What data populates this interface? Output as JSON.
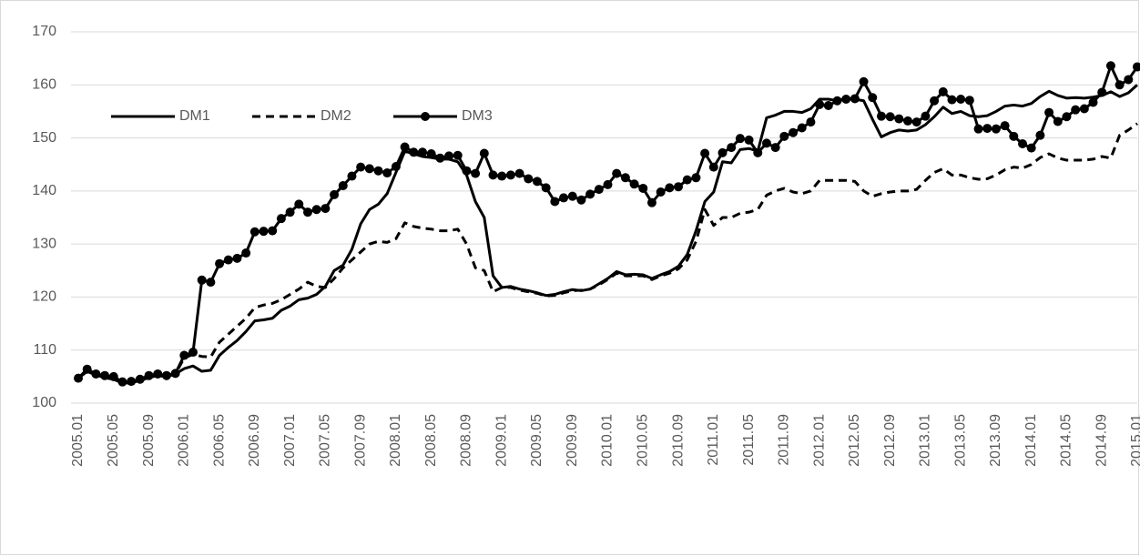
{
  "chart_data": {
    "type": "line",
    "categories": [
      "2005.01",
      null,
      null,
      null,
      "2005.05",
      null,
      null,
      null,
      "2005.09",
      null,
      null,
      null,
      "2006.01",
      null,
      null,
      null,
      "2006.05",
      null,
      null,
      null,
      "2006.09",
      null,
      null,
      null,
      "2007.01",
      null,
      null,
      null,
      "2007.05",
      null,
      null,
      null,
      "2007.09",
      null,
      null,
      null,
      "2008.01",
      null,
      null,
      null,
      "2008.05",
      null,
      null,
      null,
      "2008.09",
      null,
      null,
      null,
      "2009.01",
      null,
      null,
      null,
      "2009.05",
      null,
      null,
      null,
      "2009.09",
      null,
      null,
      null,
      "2010.01",
      null,
      null,
      null,
      "2010.05",
      null,
      null,
      null,
      "2010.09",
      null,
      null,
      null,
      "2011.01",
      null,
      null,
      null,
      "2011.05",
      null,
      null,
      null,
      "2011.09",
      null,
      null,
      null,
      "2012.01",
      null,
      null,
      null,
      "2012.05",
      null,
      null,
      null,
      "2012.09",
      null,
      null,
      null,
      "2013.01",
      null,
      null,
      null,
      "2013.05",
      null,
      null,
      null,
      "2013.09",
      null,
      null,
      null,
      "2014.01",
      null,
      null,
      null,
      "2014.05",
      null,
      null,
      null,
      "2014.09",
      null,
      null,
      null,
      "2015.01"
    ],
    "series": [
      {
        "name": "DM1",
        "color": "#000000",
        "style": "solid",
        "markers": false,
        "values": [
          104.7,
          106.0,
          105.3,
          104.8,
          104.5,
          103.8,
          103.8,
          104.3,
          104.8,
          105.2,
          105.0,
          105.5,
          106.5,
          107.0,
          106.0,
          106.2,
          109.0,
          110.5,
          111.8,
          113.5,
          115.5,
          115.7,
          116.0,
          117.5,
          118.3,
          119.5,
          119.8,
          120.5,
          122.0,
          125.0,
          126.0,
          129.0,
          133.8,
          136.5,
          137.5,
          139.5,
          143.5,
          147.5,
          147.0,
          146.5,
          146.3,
          146.0,
          146.0,
          145.5,
          143.0,
          138.0,
          135.0,
          124.0,
          121.8,
          122.0,
          121.5,
          121.2,
          120.8,
          120.3,
          120.5,
          121.0,
          121.4,
          121.2,
          121.5,
          122.5,
          123.5,
          124.8,
          124.2,
          124.3,
          124.2,
          123.5,
          124.2,
          124.8,
          125.8,
          128.0,
          132.5,
          138.0,
          139.8,
          145.5,
          145.3,
          147.8,
          148.0,
          147.5,
          153.8,
          154.3,
          155.0,
          155.0,
          154.8,
          155.5,
          157.3,
          157.3,
          157.0,
          157.5,
          157.3,
          157.0,
          153.5,
          150.2,
          151.0,
          151.5,
          151.3,
          151.5,
          152.5,
          154.0,
          155.8,
          154.6,
          155.0,
          154.2,
          154.0,
          154.2,
          155.0,
          156.0,
          156.2,
          156.0,
          156.5,
          157.8,
          158.8,
          158.0,
          157.5,
          157.6,
          157.5,
          157.7,
          158.0,
          158.7,
          157.8,
          158.5,
          160.0
        ]
      },
      {
        "name": "DM2",
        "color": "#000000",
        "style": "dashed",
        "markers": false,
        "values": [
          104.7,
          106.0,
          105.3,
          104.8,
          104.5,
          103.8,
          103.8,
          104.3,
          104.8,
          105.2,
          105.0,
          105.5,
          108.5,
          109.2,
          108.8,
          108.7,
          111.5,
          113.0,
          114.5,
          116.0,
          118.0,
          118.5,
          118.8,
          119.5,
          120.5,
          121.5,
          122.8,
          122.0,
          121.8,
          123.5,
          125.5,
          127.0,
          128.5,
          130.0,
          130.5,
          130.3,
          131.0,
          134.0,
          133.3,
          133.0,
          132.8,
          132.5,
          132.5,
          132.8,
          130.0,
          125.5,
          125.0,
          121.0,
          121.8,
          121.8,
          121.3,
          121.0,
          120.7,
          120.2,
          120.3,
          120.8,
          121.2,
          121.3,
          121.5,
          122.3,
          123.3,
          124.5,
          124.0,
          124.0,
          124.0,
          123.3,
          124.0,
          124.5,
          125.3,
          127.0,
          130.5,
          136.5,
          133.5,
          135.0,
          135.0,
          135.8,
          136.0,
          136.5,
          139.2,
          140.0,
          140.5,
          139.8,
          139.5,
          140.0,
          142.0,
          142.0,
          142.0,
          142.0,
          141.8,
          140.0,
          139.0,
          139.5,
          139.8,
          140.0,
          140.0,
          140.3,
          142.0,
          143.5,
          144.2,
          143.0,
          143.0,
          142.5,
          142.2,
          142.3,
          143.0,
          144.0,
          144.5,
          144.3,
          145.0,
          146.3,
          147.0,
          146.2,
          145.8,
          145.8,
          145.8,
          146.0,
          146.5,
          146.2,
          150.5,
          151.5,
          152.7
        ]
      },
      {
        "name": "DM3",
        "color": "#000000",
        "style": "solid",
        "markers": true,
        "values": [
          104.7,
          106.4,
          105.5,
          105.2,
          105.0,
          104.0,
          104.1,
          104.5,
          105.2,
          105.5,
          105.2,
          105.6,
          109.0,
          109.6,
          123.2,
          122.8,
          126.3,
          127.0,
          127.3,
          128.3,
          132.3,
          132.4,
          132.5,
          134.8,
          136.0,
          137.5,
          136.0,
          136.5,
          136.7,
          139.3,
          141.0,
          142.8,
          144.5,
          144.2,
          143.8,
          143.4,
          144.6,
          148.3,
          147.3,
          147.3,
          147.0,
          146.2,
          146.6,
          146.7,
          143.8,
          143.3,
          147.1,
          143.0,
          142.8,
          143.0,
          143.3,
          142.3,
          141.8,
          140.6,
          138.0,
          138.7,
          139.0,
          138.3,
          139.4,
          140.3,
          141.2,
          143.3,
          142.5,
          141.3,
          140.5,
          137.8,
          139.8,
          140.6,
          140.8,
          142.1,
          142.5,
          147.1,
          144.5,
          147.2,
          148.2,
          149.9,
          149.6,
          147.2,
          149.0,
          148.2,
          150.3,
          151.0,
          151.9,
          153.0,
          156.3,
          156.1,
          157.0,
          157.3,
          157.4,
          160.6,
          157.6,
          154.1,
          154.0,
          153.6,
          153.2,
          153.0,
          154.1,
          157.0,
          158.7,
          157.2,
          157.3,
          157.1,
          151.7,
          151.8,
          151.7,
          152.3,
          150.3,
          148.9,
          148.1,
          150.5,
          154.8,
          153.1,
          154.0,
          155.3,
          155.5,
          156.7,
          158.6,
          163.6,
          160.0,
          161.0,
          163.4
        ]
      }
    ],
    "ylim": [
      100,
      170
    ],
    "yticks": [
      100,
      110,
      120,
      130,
      140,
      150,
      160,
      170
    ],
    "grid": true,
    "legend": "top-left"
  }
}
